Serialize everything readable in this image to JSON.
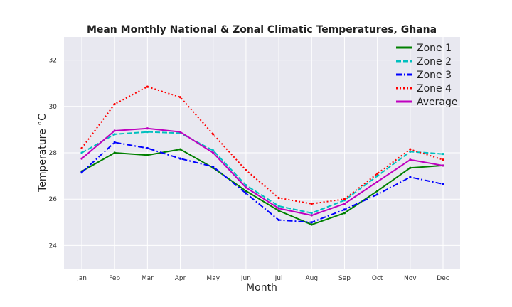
{
  "chart_data": {
    "type": "line",
    "title": "Mean Monthly National & Zonal Climatic  Temperatures, Ghana",
    "xlabel": "Month",
    "ylabel": "Temperature °C",
    "categories": [
      "Jan",
      "Feb",
      "Mar",
      "Apr",
      "May",
      "Jun",
      "Jul",
      "Aug",
      "Sep",
      "Oct",
      "Nov",
      "Dec"
    ],
    "ylim": [
      23,
      33
    ],
    "yticks": [
      24,
      26,
      28,
      30,
      32
    ],
    "grid": true,
    "legend_position": "top-right",
    "series": [
      {
        "name": "Zone 1",
        "color": "#008000",
        "style": "solid",
        "values": [
          27.2,
          28.0,
          27.9,
          28.15,
          27.35,
          26.35,
          25.5,
          24.9,
          25.4,
          26.35,
          27.35,
          27.45
        ]
      },
      {
        "name": "Zone 2",
        "color": "#00bfbf",
        "style": "dashed",
        "values": [
          28.0,
          28.8,
          28.9,
          28.85,
          28.1,
          26.6,
          25.7,
          25.4,
          25.95,
          27.0,
          28.05,
          27.95
        ]
      },
      {
        "name": "Zone 3",
        "color": "#0000ff",
        "style": "dashdot",
        "values": [
          27.15,
          28.45,
          28.2,
          27.75,
          27.4,
          26.25,
          25.1,
          25.0,
          25.55,
          26.2,
          26.95,
          26.65
        ]
      },
      {
        "name": "Zone 4",
        "color": "#ff0000",
        "style": "dotted",
        "values": [
          28.2,
          30.1,
          30.85,
          30.4,
          28.8,
          27.25,
          26.05,
          25.8,
          26.0,
          27.1,
          28.15,
          27.7
        ]
      },
      {
        "name": "Average",
        "color": "#bf00bf",
        "style": "solid",
        "values": [
          27.75,
          28.95,
          29.05,
          28.9,
          28.0,
          26.5,
          25.6,
          25.3,
          25.8,
          26.75,
          27.7,
          27.45
        ]
      }
    ]
  }
}
